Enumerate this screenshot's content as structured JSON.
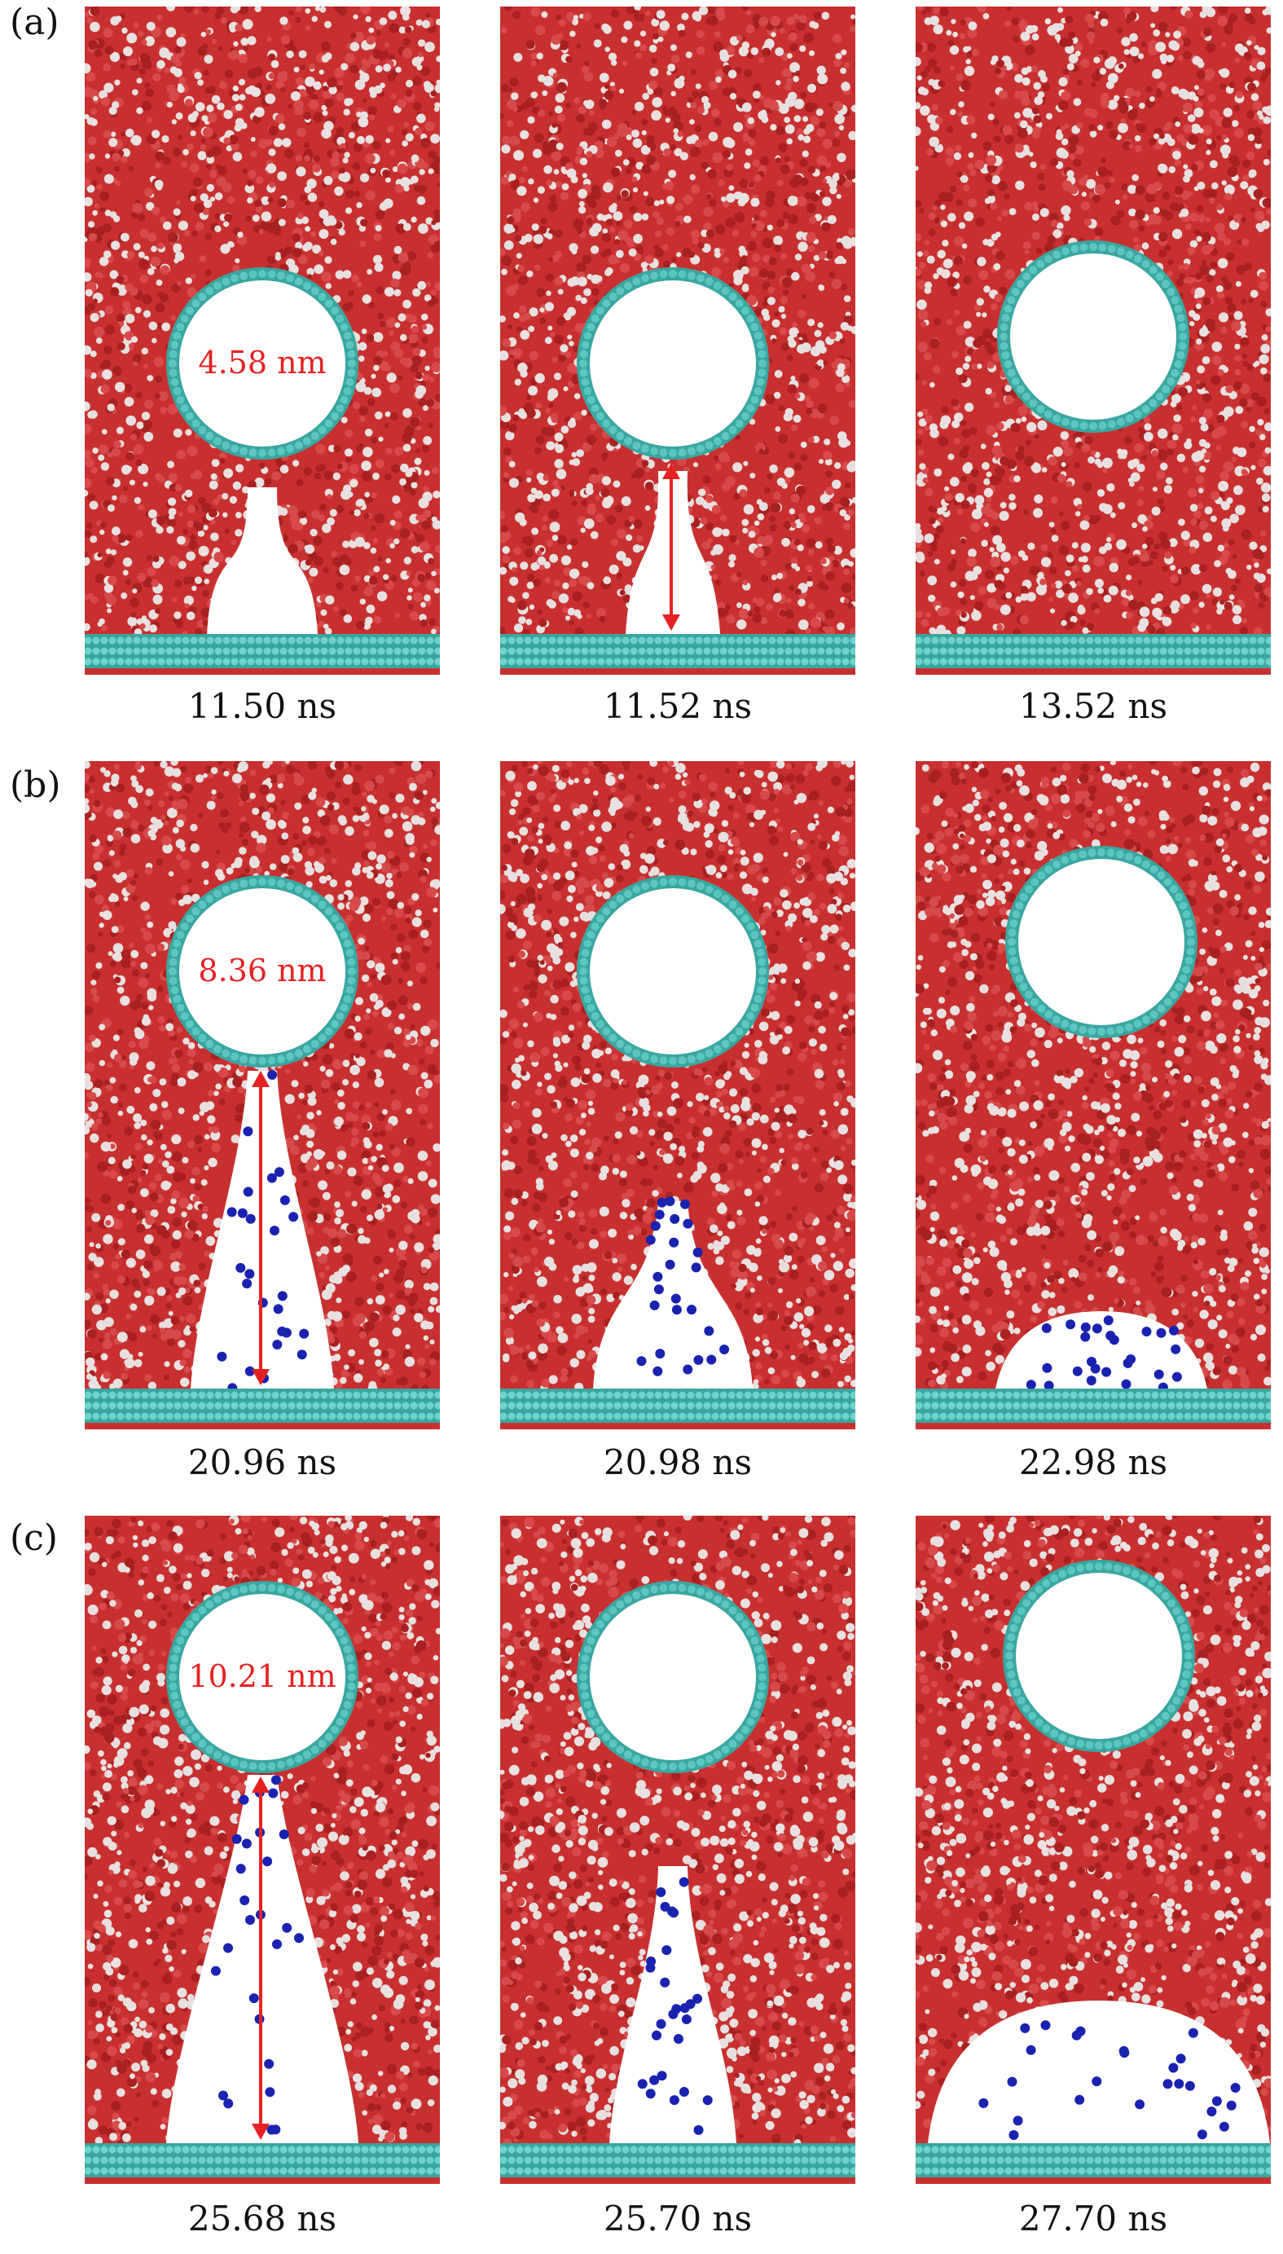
{
  "figure": {
    "rows": [
      {
        "label": "(a)",
        "frames": [
          {
            "time": "11.50 ns",
            "distance_label": "4.58 nm",
            "stage": "bridge",
            "ions": false
          },
          {
            "time": "11.52 ns",
            "distance_label": "",
            "stage": "bridge-arrow",
            "ions": false
          },
          {
            "time": "13.52 ns",
            "distance_label": "",
            "stage": "filled",
            "ions": false
          }
        ]
      },
      {
        "label": "(b)",
        "frames": [
          {
            "time": "20.96 ns",
            "distance_label": "8.36 nm",
            "stage": "bridge-arrow",
            "ions": true
          },
          {
            "time": "20.98 ns",
            "distance_label": "",
            "stage": "cone",
            "ions": true
          },
          {
            "time": "22.98 ns",
            "distance_label": "",
            "stage": "cap",
            "ions": true
          }
        ]
      },
      {
        "label": "(c)",
        "frames": [
          {
            "time": "25.68 ns",
            "distance_label": "10.21 nm",
            "stage": "bridge-arrow",
            "ions": true
          },
          {
            "time": "25.70 ns",
            "distance_label": "",
            "stage": "cone",
            "ions": true
          },
          {
            "time": "27.70 ns",
            "distance_label": "",
            "stage": "cap",
            "ions": true
          }
        ]
      }
    ],
    "colors": {
      "water_oxygen": "#c83030",
      "water_hydrogen": "#e8e0e0",
      "surface": "#3aa6a0",
      "ion": "#1a22b0",
      "arrow": "#e52222"
    }
  }
}
